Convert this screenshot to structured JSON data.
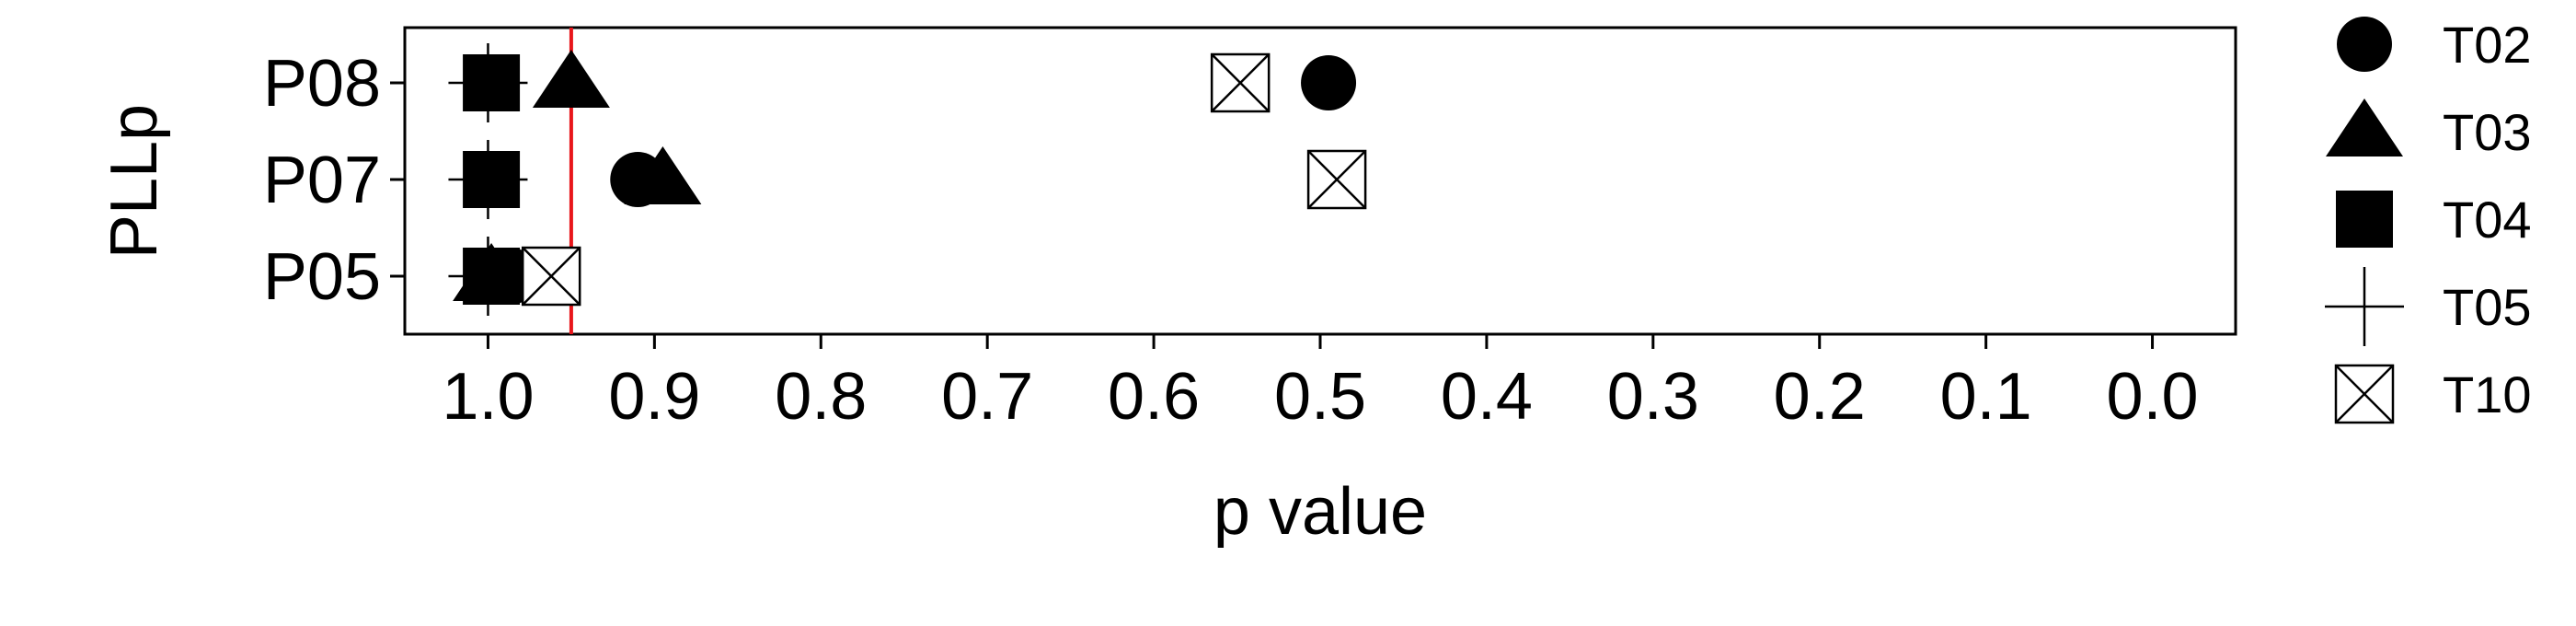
{
  "chart_data": {
    "type": "scatter",
    "xlabel": "p value",
    "ylabel": "PLLp",
    "xlim": [
      1.05,
      -0.05
    ],
    "x_reversed": true,
    "x_ticks": [
      "1.0",
      "0.9",
      "0.8",
      "0.7",
      "0.6",
      "0.5",
      "0.4",
      "0.3",
      "0.2",
      "0.1",
      "0.0"
    ],
    "x_tick_values": [
      1.0,
      0.9,
      0.8,
      0.7,
      0.6,
      0.5,
      0.4,
      0.3,
      0.2,
      0.1,
      0.0
    ],
    "categories": [
      "P05",
      "P07",
      "P08"
    ],
    "reference_line": {
      "x": 0.95,
      "color": "#e8161b"
    },
    "grid": false,
    "legend_position": "right",
    "series": [
      {
        "name": "T02",
        "shape": "circle",
        "points": [
          {
            "y": "P05",
            "x": 0.985
          },
          {
            "y": "P07",
            "x": 0.91
          },
          {
            "y": "P08",
            "x": 0.495
          }
        ]
      },
      {
        "name": "T03",
        "shape": "triangle",
        "points": [
          {
            "y": "P05",
            "x": 0.998
          },
          {
            "y": "P07",
            "x": 0.895
          },
          {
            "y": "P08",
            "x": 0.95
          }
        ]
      },
      {
        "name": "T04",
        "shape": "square",
        "points": [
          {
            "y": "P05",
            "x": 0.998
          },
          {
            "y": "P07",
            "x": 0.998
          },
          {
            "y": "P08",
            "x": 0.998
          }
        ]
      },
      {
        "name": "T05",
        "shape": "plus",
        "points": [
          {
            "y": "P05",
            "x": 1.0
          },
          {
            "y": "P07",
            "x": 1.0
          },
          {
            "y": "P08",
            "x": 1.0
          }
        ]
      },
      {
        "name": "T10",
        "shape": "crossed-square",
        "points": [
          {
            "y": "P05",
            "x": 0.962
          },
          {
            "y": "P07",
            "x": 0.49
          },
          {
            "y": "P08",
            "x": 0.548
          }
        ]
      }
    ]
  }
}
